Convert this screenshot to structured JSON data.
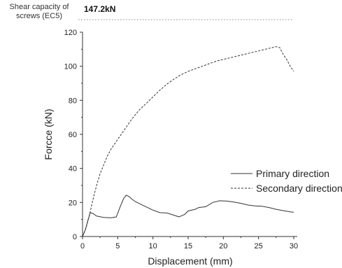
{
  "annotation": {
    "label": "Shear capacity of screws (EC5)",
    "value": "147.2kN"
  },
  "chart_data": {
    "type": "line",
    "xlabel": "Displacement (mm)",
    "ylabel": "Forcce (kN)",
    "xlim": [
      0,
      30
    ],
    "ylim": [
      0,
      120
    ],
    "xticks": [
      0,
      5,
      10,
      15,
      20,
      25,
      30
    ],
    "yticks": [
      0,
      20,
      40,
      60,
      80,
      100,
      120
    ],
    "reference_line": {
      "value": 147.2,
      "style": "dotted"
    },
    "legend_position": "lower-right",
    "grid": false,
    "series": [
      {
        "name": "Primary direction",
        "style": "solid",
        "color": "#333333",
        "points": [
          [
            0,
            0
          ],
          [
            0.4,
            4
          ],
          [
            0.8,
            10
          ],
          [
            1.1,
            14
          ],
          [
            1.5,
            13.5
          ],
          [
            2,
            12
          ],
          [
            3,
            11.2
          ],
          [
            4,
            11
          ],
          [
            4.8,
            11.5
          ],
          [
            5.3,
            17
          ],
          [
            5.8,
            22
          ],
          [
            6.2,
            24.3
          ],
          [
            6.6,
            23.5
          ],
          [
            7,
            22
          ],
          [
            7.5,
            20.5
          ],
          [
            8,
            19.5
          ],
          [
            9,
            17.5
          ],
          [
            10,
            15.5
          ],
          [
            11,
            14
          ],
          [
            12,
            13.8
          ],
          [
            13,
            12.5
          ],
          [
            13.7,
            11.5
          ],
          [
            14.5,
            13
          ],
          [
            15,
            15
          ],
          [
            16,
            16
          ],
          [
            16.5,
            17
          ],
          [
            17.5,
            17.5
          ],
          [
            18.5,
            20
          ],
          [
            19.5,
            21
          ],
          [
            20.5,
            20.8
          ],
          [
            21.5,
            20.2
          ],
          [
            22.5,
            19.5
          ],
          [
            23.5,
            18.5
          ],
          [
            24.5,
            18
          ],
          [
            25.5,
            17.8
          ],
          [
            26.5,
            17
          ],
          [
            27.5,
            16
          ],
          [
            28.5,
            15.2
          ],
          [
            29.5,
            14.5
          ],
          [
            30,
            14.2
          ]
        ]
      },
      {
        "name": "Secondary direction",
        "style": "dashed",
        "color": "#333333",
        "points": [
          [
            0,
            0
          ],
          [
            0.5,
            5
          ],
          [
            1,
            13
          ],
          [
            1.5,
            22
          ],
          [
            2,
            30
          ],
          [
            2.5,
            37
          ],
          [
            3,
            42
          ],
          [
            3.5,
            47
          ],
          [
            4,
            51
          ],
          [
            5,
            57
          ],
          [
            6,
            63
          ],
          [
            7,
            69
          ],
          [
            8,
            74
          ],
          [
            9,
            78
          ],
          [
            10,
            82
          ],
          [
            11,
            86
          ],
          [
            12,
            89.5
          ],
          [
            13,
            92.5
          ],
          [
            14,
            95
          ],
          [
            15,
            97
          ],
          [
            16,
            98.5
          ],
          [
            17,
            100
          ],
          [
            18,
            101.5
          ],
          [
            19,
            103
          ],
          [
            20,
            104
          ],
          [
            21,
            105
          ],
          [
            22,
            106
          ],
          [
            23,
            107
          ],
          [
            24,
            108
          ],
          [
            25,
            109
          ],
          [
            26,
            110
          ],
          [
            27,
            111
          ],
          [
            27.5,
            111.5
          ],
          [
            28,
            111
          ],
          [
            28.5,
            107
          ],
          [
            29,
            104
          ],
          [
            29.5,
            100
          ],
          [
            30,
            97
          ]
        ]
      }
    ]
  }
}
